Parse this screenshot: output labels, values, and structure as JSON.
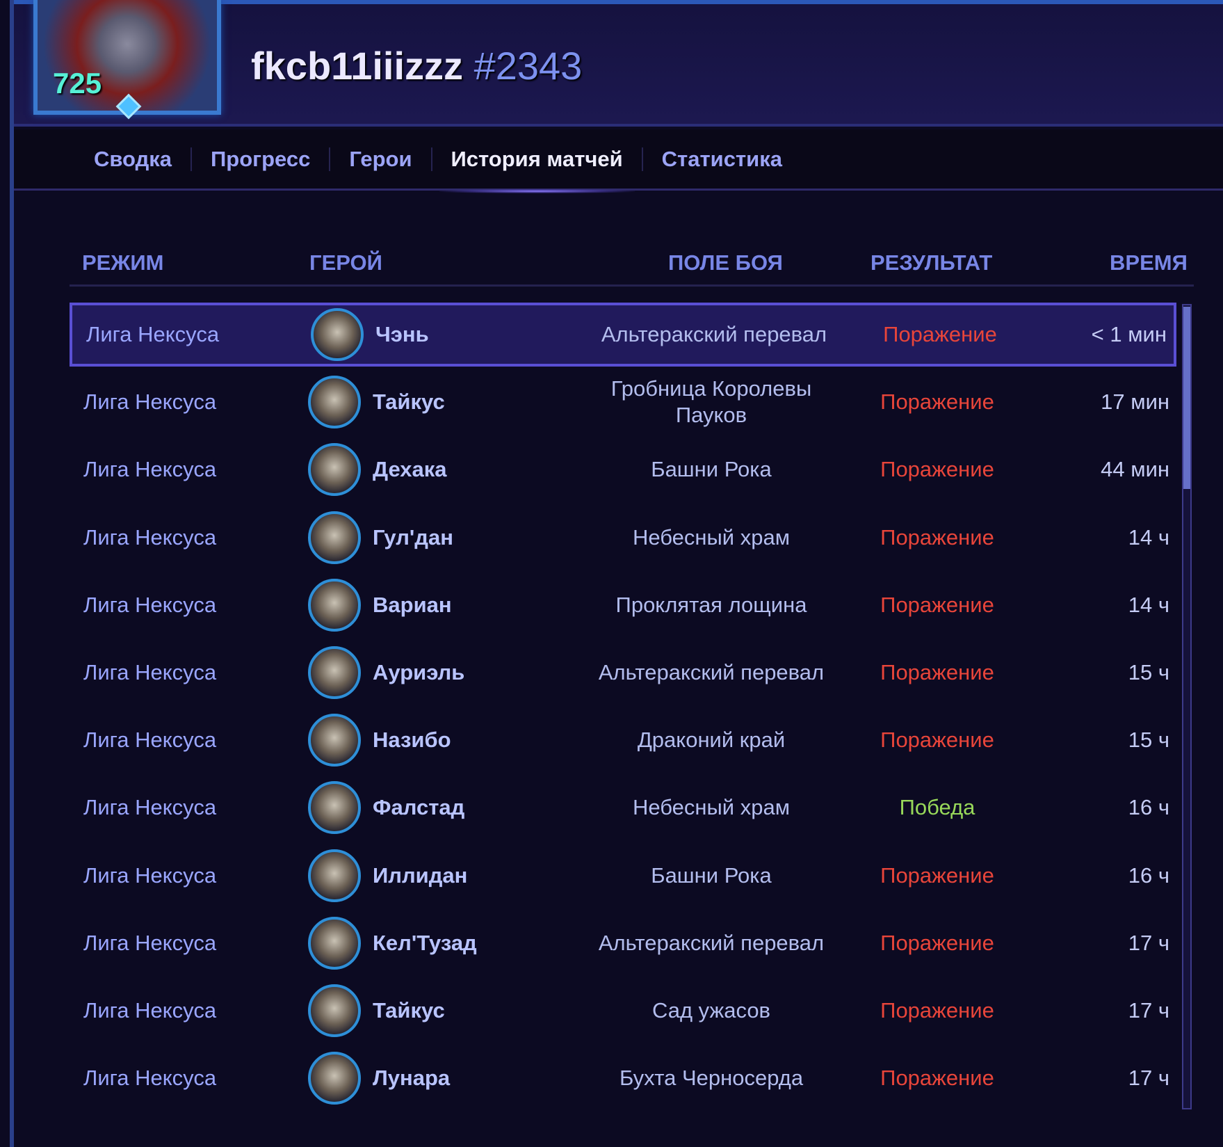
{
  "profile": {
    "level": "725",
    "name": "fkcb11iiizzz",
    "tag": "#2343"
  },
  "nav": [
    {
      "label": "Сводка"
    },
    {
      "label": "Прогресс"
    },
    {
      "label": "Герои"
    },
    {
      "label": "История матчей",
      "active": true
    },
    {
      "label": "Статистика"
    }
  ],
  "table": {
    "headers": {
      "mode": "РЕЖИМ",
      "hero": "ГЕРОЙ",
      "map": "ПОЛЕ БОЯ",
      "result": "РЕЗУЛЬТАТ",
      "time": "ВРЕМЯ"
    },
    "rows": [
      {
        "mode": "Лига Нексуса",
        "hero": "Чэнь",
        "map": "Альтеракский перевал",
        "result": "Поражение",
        "time": "< 1 мин"
      },
      {
        "mode": "Лига Нексуса",
        "hero": "Тайкус",
        "map": "Гробница Королевы Пауков",
        "result": "Поражение",
        "time": "17 мин"
      },
      {
        "mode": "Лига Нексуса",
        "hero": "Дехака",
        "map": "Башни Рока",
        "result": "Поражение",
        "time": "44 мин"
      },
      {
        "mode": "Лига Нексуса",
        "hero": "Гул'дан",
        "map": "Небесный храм",
        "result": "Поражение",
        "time": "14 ч"
      },
      {
        "mode": "Лига Нексуса",
        "hero": "Вариан",
        "map": "Проклятая лощина",
        "result": "Поражение",
        "time": "14 ч"
      },
      {
        "mode": "Лига Нексуса",
        "hero": "Ауриэль",
        "map": "Альтеракский перевал",
        "result": "Поражение",
        "time": "15 ч"
      },
      {
        "mode": "Лига Нексуса",
        "hero": "Назибо",
        "map": "Драконий край",
        "result": "Поражение",
        "time": "15 ч"
      },
      {
        "mode": "Лига Нексуса",
        "hero": "Фалстад",
        "map": "Небесный храм",
        "result": "Победа",
        "time": "16 ч"
      },
      {
        "mode": "Лига Нексуса",
        "hero": "Иллидан",
        "map": "Башни Рока",
        "result": "Поражение",
        "time": "16 ч"
      },
      {
        "mode": "Лига Нексуса",
        "hero": "Кел'Тузад",
        "map": "Альтеракский перевал",
        "result": "Поражение",
        "time": "17 ч"
      },
      {
        "mode": "Лига Нексуса",
        "hero": "Тайкус",
        "map": "Сад ужасов",
        "result": "Поражение",
        "time": "17 ч"
      },
      {
        "mode": "Лига Нексуса",
        "hero": "Лунара",
        "map": "Бухта Черносерда",
        "result": "Поражение",
        "time": "17 ч"
      }
    ]
  },
  "colors": {
    "loss": "#e8453a",
    "win": "#98d85a",
    "accent": "#5a4fd4"
  }
}
